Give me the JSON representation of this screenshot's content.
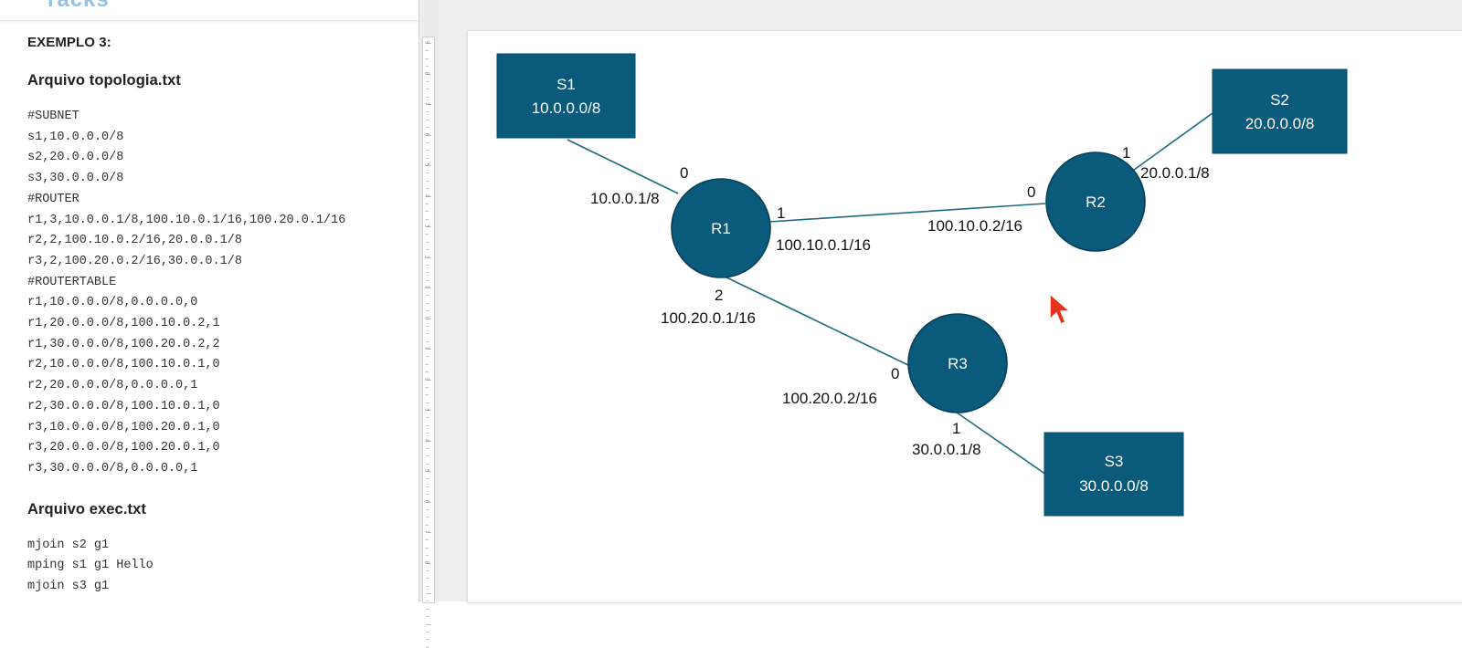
{
  "document": {
    "logo_text": "racks",
    "example_title": "EXEMPLO 3:",
    "topology_heading": "Arquivo topologia.txt",
    "topology_lines": [
      "#SUBNET",
      "s1,10.0.0.0/8",
      "s2,20.0.0.0/8",
      "s3,30.0.0.0/8",
      "#ROUTER",
      "r1,3,10.0.0.1/8,100.10.0.1/16,100.20.0.1/16",
      "r2,2,100.10.0.2/16,20.0.0.1/8",
      "r3,2,100.20.0.2/16,30.0.0.1/8",
      "#ROUTERTABLE",
      "r1,10.0.0.0/8,0.0.0.0,0",
      "r1,20.0.0.0/8,100.10.0.2,1",
      "r1,30.0.0.0/8,100.20.0.2,2",
      "r2,10.0.0.0/8,100.10.0.1,0",
      "r2,20.0.0.0/8,0.0.0.0,1",
      "r2,30.0.0.0/8,100.10.0.1,0",
      "r3,10.0.0.0/8,100.20.0.1,0",
      "r3,20.0.0.0/8,100.20.0.1,0",
      "r3,30.0.0.0/8,0.0.0.0,1"
    ],
    "exec_heading": "Arquivo exec.txt",
    "exec_lines": [
      "mjoin s2 g1",
      "mping s1 g1 Hello",
      "mjoin s3 g1"
    ]
  },
  "ruler": {
    "numbers": [
      "9",
      "8",
      "7",
      "6",
      "5",
      "4",
      "3",
      "2",
      "1",
      "0",
      "1",
      "2",
      "3",
      "4",
      "5",
      "6",
      "7",
      "8"
    ]
  },
  "diagram": {
    "subnets": [
      {
        "id": "S1",
        "address": "10.0.0.0/8"
      },
      {
        "id": "S2",
        "address": "20.0.0.0/8"
      },
      {
        "id": "S3",
        "address": "30.0.0.0/8"
      }
    ],
    "routers": [
      {
        "id": "R1"
      },
      {
        "id": "R2"
      },
      {
        "id": "R3"
      }
    ],
    "interface_labels": {
      "r1_port0": "0",
      "r1_ip0": "10.0.0.1/8",
      "r1_port1": "1",
      "r1_ip1": "100.10.0.1/16",
      "r1_port2": "2",
      "r1_ip2": "100.20.0.1/16",
      "r2_port0": "0",
      "r2_ip0": "100.10.0.2/16",
      "r2_port1": "1",
      "r2_ip1": "20.0.0.1/8",
      "r3_port0": "0",
      "r3_ip0": "100.20.0.2/16",
      "r3_port1": "1",
      "r3_ip1": "30.0.0.1/8"
    }
  },
  "colors": {
    "node_fill": "#0a5a7c",
    "link": "#1c6b80",
    "cursor": "#e8321c",
    "canvas_bg": "#efefef"
  },
  "icons": {
    "cursor": "mouse-pointer-icon"
  }
}
